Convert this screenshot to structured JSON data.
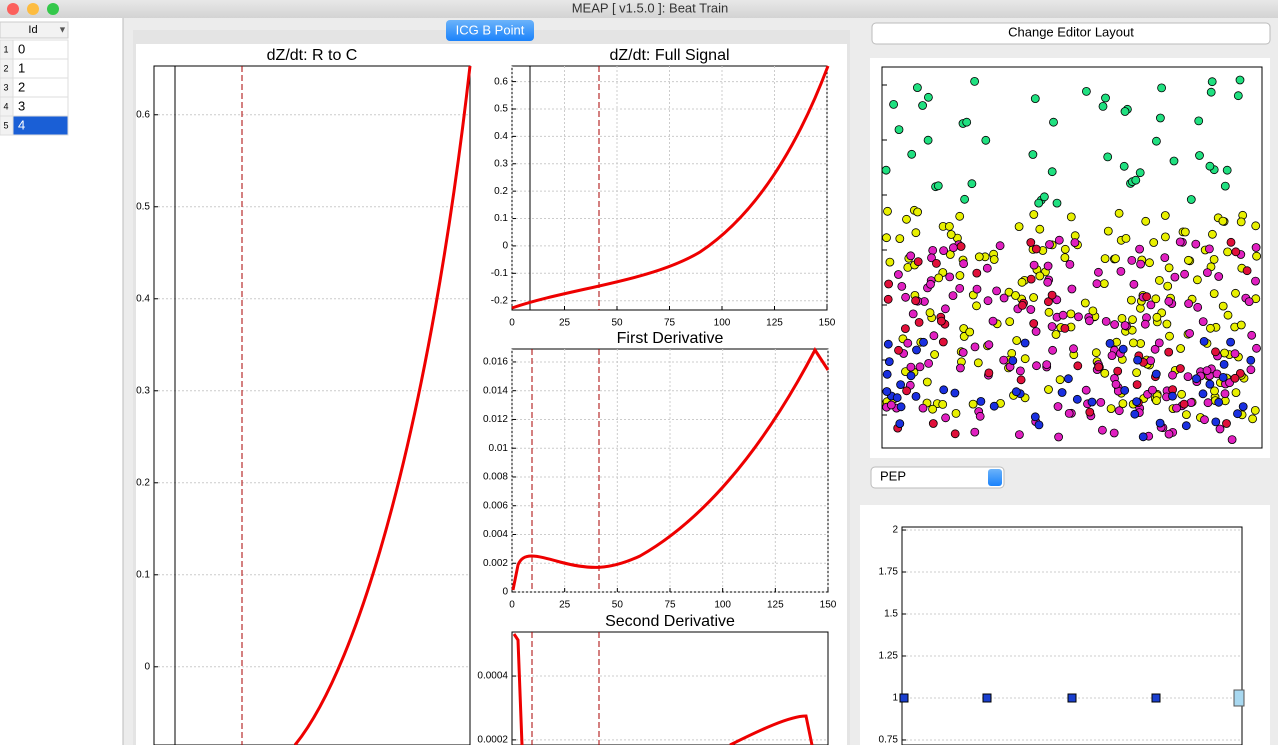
{
  "window": {
    "title": "MEAP [ v1.5.0 ]: Beat Train"
  },
  "table": {
    "header": "Id",
    "rows": [
      [
        1,
        0
      ],
      [
        2,
        1
      ],
      [
        3,
        2
      ],
      [
        4,
        3
      ],
      [
        5,
        4
      ]
    ]
  },
  "buttons": {
    "point": "ICG B Point",
    "layout": "Change Editor Layout"
  },
  "dropdown": {
    "value": "PEP"
  },
  "plots": [
    {
      "title": "dZ/dt: R to C",
      "ylim": [
        -0.085,
        0.653
      ],
      "yticks": [
        0,
        0.1,
        0.2,
        0.3,
        0.4,
        0.5,
        0.6
      ]
    },
    {
      "title": "dZ/dt: Full Signal",
      "xlim": [
        0,
        150
      ],
      "xticks": [
        0,
        25,
        50,
        75,
        100,
        125,
        150
      ],
      "ylim": [
        -0.234,
        0.657
      ],
      "yticks": [
        -0.2,
        -0.1,
        0,
        0.1,
        0.2,
        0.3,
        0.4,
        0.5,
        0.6
      ]
    },
    {
      "title": "First Derivative",
      "xlim": [
        0,
        150
      ],
      "xticks": [
        0,
        25,
        50,
        75,
        100,
        125,
        150
      ],
      "ylim": [
        0,
        0.0169
      ],
      "yticks": [
        0,
        0.002,
        0.004,
        0.006,
        0.008,
        0.01,
        0.012,
        0.014,
        0.016
      ]
    },
    {
      "title": "Second Derivative",
      "ylim": [
        0.000184,
        0.000538
      ],
      "yticks": [
        0.0002,
        0.0004
      ]
    },
    {
      "ylim": [
        0.72,
        2.018
      ],
      "yticks": [
        0.75,
        1,
        1.25,
        1.5,
        1.75,
        2
      ]
    }
  ]
}
